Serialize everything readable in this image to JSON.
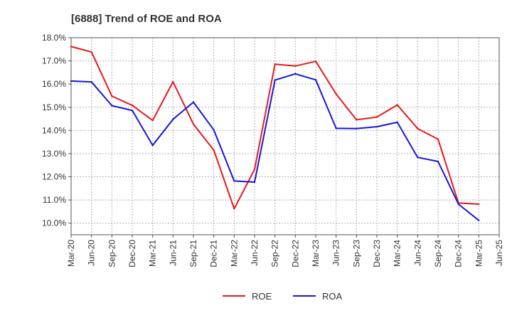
{
  "chart_data": {
    "type": "line",
    "title": "[6888]  Trend of ROE and ROA",
    "xlabel": "",
    "ylabel": "",
    "x": [
      "Mar-20",
      "Jun-20",
      "Sep-20",
      "Dec-20",
      "Mar-21",
      "Jun-21",
      "Sep-21",
      "Dec-21",
      "Mar-22",
      "Jun-22",
      "Sep-22",
      "Dec-22",
      "Mar-23",
      "Jun-23",
      "Sep-23",
      "Dec-23",
      "Mar-24",
      "Jun-24",
      "Sep-24",
      "Dec-24",
      "Mar-25",
      "Jun-25"
    ],
    "y_ticks": [
      "10.0%",
      "11.0%",
      "12.0%",
      "13.0%",
      "14.0%",
      "15.0%",
      "16.0%",
      "17.0%",
      "18.0%"
    ],
    "ylim": [
      9.5,
      18.0
    ],
    "grid": true,
    "legend": "bottom-center",
    "series": [
      {
        "name": "ROE",
        "color": "#e8191b",
        "values": [
          17.62,
          17.38,
          15.48,
          15.08,
          14.43,
          16.1,
          14.27,
          13.15,
          10.62,
          12.32,
          16.86,
          16.78,
          16.98,
          15.57,
          14.46,
          14.58,
          15.1,
          14.08,
          13.62,
          10.87,
          10.82,
          null
        ]
      },
      {
        "name": "ROA",
        "color": "#1616d8",
        "values": [
          16.13,
          16.09,
          15.07,
          14.86,
          13.36,
          14.48,
          15.22,
          14.02,
          11.82,
          11.77,
          16.17,
          16.44,
          16.18,
          14.09,
          14.08,
          14.16,
          14.35,
          12.84,
          12.66,
          10.82,
          10.12,
          null
        ]
      }
    ]
  }
}
